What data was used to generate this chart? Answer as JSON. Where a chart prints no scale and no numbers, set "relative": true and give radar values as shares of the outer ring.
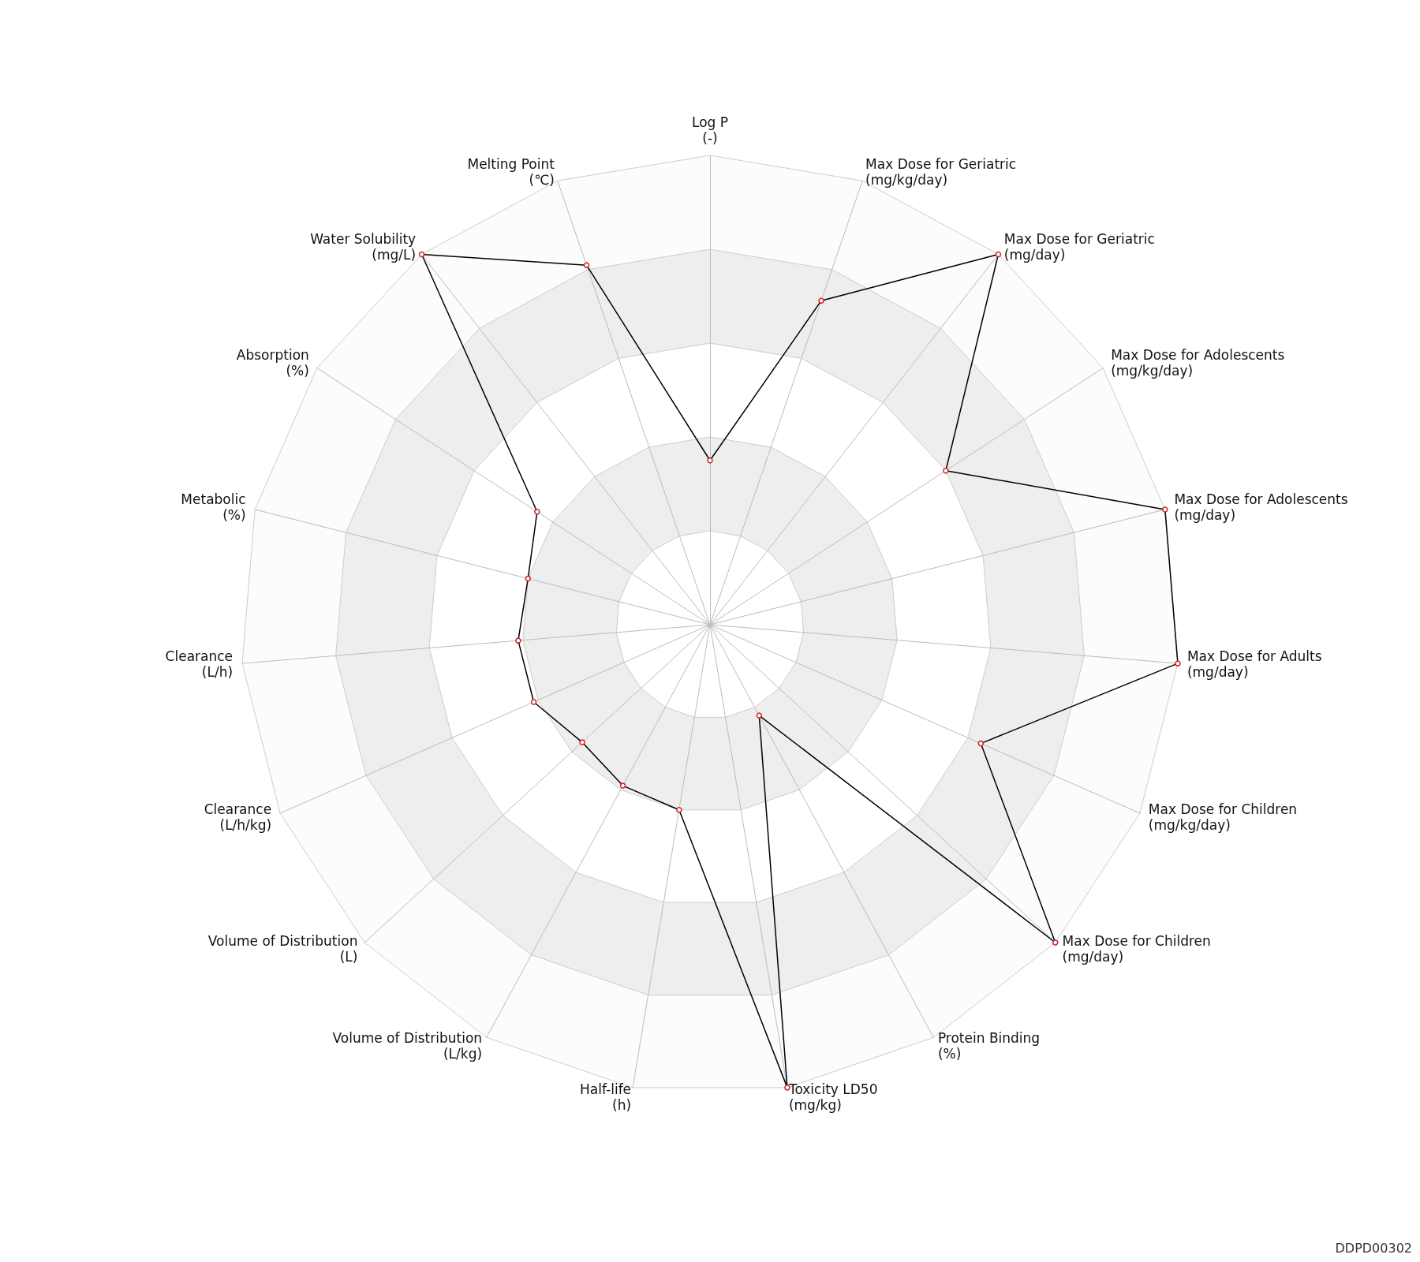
{
  "chart_data": {
    "type": "radar",
    "relative": true,
    "grid": true,
    "marker": "circle",
    "line_style": "solid",
    "categories": [
      "Log P\n(-)",
      "Max Dose for Geriatric\n(mg/kg/day)",
      "Max Dose for Geriatric\n(mg/day)",
      "Max Dose for Adolescents\n(mg/kg/day)",
      "Max Dose for Adolescents\n(mg/day)",
      "Max Dose for Adults\n(mg/day)",
      "Max Dose for Children\n(mg/kg/day)",
      "Max Dose for Children\n(mg/day)",
      "Protein Binding\n(%)",
      "Toxicity LD50\n(mg/kg)",
      "Half-life\n(h)",
      "Volume of Distribution\n(L/kg)",
      "Volume of Distribution\n(L)",
      "Clearance\n(L/h/kg)",
      "Clearance\n(L/h)",
      "Metabolic\n(%)",
      "Absorption\n(%)",
      "Water Solubility\n(mg/L)",
      "Melting Point\n(℃)"
    ],
    "series": [
      {
        "color": "#000000",
        "values": [
          0.35,
          0.73,
          1.0,
          0.6,
          1.0,
          1.0,
          0.63,
          1.0,
          0.22,
          1.0,
          0.4,
          0.39,
          0.37,
          0.41,
          0.41,
          0.4,
          0.44,
          1.0,
          0.81
        ]
      }
    ],
    "annotations": [
      "DDPD00302"
    ]
  }
}
